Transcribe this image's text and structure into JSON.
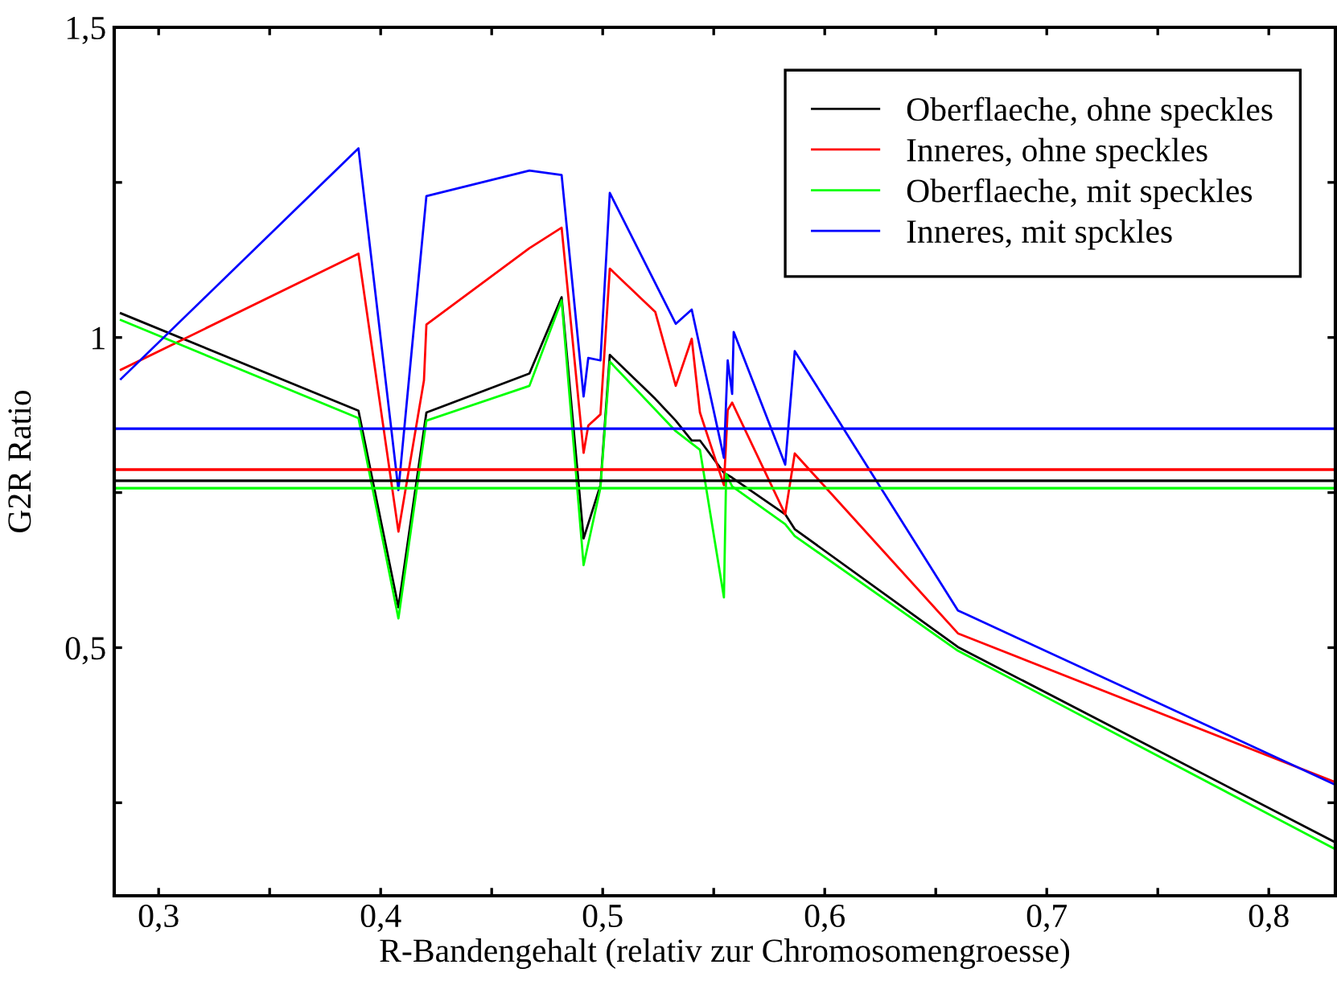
{
  "chart_data": {
    "type": "line",
    "xlabel": "R-Bandengehalt (relativ zur Chromosomengroesse)",
    "ylabel": "G2R Ratio",
    "xlim": [
      0.28,
      0.83
    ],
    "ylim": [
      0.1,
      1.5
    ],
    "xticks": [
      {
        "value": 0.3,
        "label": "0,3"
      },
      {
        "value": 0.35,
        "label": null
      },
      {
        "value": 0.4,
        "label": "0,4"
      },
      {
        "value": 0.45,
        "label": null
      },
      {
        "value": 0.5,
        "label": "0,5"
      },
      {
        "value": 0.55,
        "label": null
      },
      {
        "value": 0.6,
        "label": "0,6"
      },
      {
        "value": 0.65,
        "label": null
      },
      {
        "value": 0.7,
        "label": "0,7"
      },
      {
        "value": 0.75,
        "label": null
      },
      {
        "value": 0.8,
        "label": "0,8"
      }
    ],
    "yticks": [
      {
        "value": 0.25,
        "label": null
      },
      {
        "value": 0.5,
        "label": "0,5"
      },
      {
        "value": 0.75,
        "label": null
      },
      1,
      {
        "value": 1.25,
        "label": null
      },
      {
        "value": 1.5,
        "label": "1,5"
      }
    ],
    "grid": false,
    "legend": "top right",
    "marker": "none",
    "line_style": "solid",
    "series": [
      {
        "name": "Oberflaeche, ohne speckles",
        "color": "#000000",
        "x": [
          0.283,
          0.39,
          0.408,
          0.4206,
          0.467,
          0.4815,
          0.4914,
          0.499,
          0.5032,
          0.5237,
          0.5329,
          0.5401,
          0.5438,
          0.5546,
          0.5583,
          0.5822,
          0.5865,
          0.66,
          0.83
        ],
        "values": [
          1.039,
          0.882,
          0.565,
          0.879,
          0.942,
          1.065,
          0.676,
          0.762,
          0.972,
          0.901,
          0.866,
          0.834,
          0.834,
          0.782,
          0.774,
          0.715,
          0.691,
          0.501,
          0.186
        ]
      },
      {
        "name": "Inneres, ohne speckles",
        "color": "#ff0000",
        "x": [
          0.283,
          0.39,
          0.408,
          0.4195,
          0.4206,
          0.467,
          0.4815,
          0.4914,
          0.4935,
          0.499,
          0.5032,
          0.5237,
          0.5329,
          0.5401,
          0.5438,
          0.5546,
          0.5563,
          0.5583,
          0.5822,
          0.5865,
          0.66,
          0.83
        ],
        "values": [
          0.948,
          1.135,
          0.687,
          0.931,
          1.021,
          1.144,
          1.177,
          0.814,
          0.858,
          0.876,
          1.111,
          1.041,
          0.922,
          0.998,
          0.879,
          0.762,
          0.883,
          0.895,
          0.715,
          0.813,
          0.523,
          0.283
        ]
      },
      {
        "name": "Oberflaeche, mit speckles",
        "color": "#00ff00",
        "x": [
          0.283,
          0.39,
          0.408,
          0.4206,
          0.467,
          0.4815,
          0.4914,
          0.499,
          0.5032,
          0.5329,
          0.5438,
          0.5546,
          0.5556,
          0.5583,
          0.5822,
          0.5865,
          0.66,
          0.83
        ],
        "values": [
          1.028,
          0.87,
          0.547,
          0.866,
          0.922,
          1.06,
          0.633,
          0.758,
          0.961,
          0.849,
          0.819,
          0.581,
          0.78,
          0.76,
          0.699,
          0.68,
          0.495,
          0.175
        ]
      },
      {
        "name": "Inneres, mit spckles",
        "color": "#0000ff",
        "x": [
          0.283,
          0.39,
          0.408,
          0.4206,
          0.467,
          0.4815,
          0.4914,
          0.4935,
          0.499,
          0.5032,
          0.5329,
          0.5401,
          0.5546,
          0.5563,
          0.5583,
          0.559,
          0.5822,
          0.5865,
          0.66,
          0.83
        ],
        "values": [
          0.933,
          1.305,
          0.754,
          1.228,
          1.269,
          1.262,
          0.905,
          0.967,
          0.963,
          1.233,
          1.022,
          1.045,
          0.806,
          0.963,
          0.909,
          1.009,
          0.795,
          0.978,
          0.56,
          0.279
        ]
      }
    ],
    "ref_lines": [
      {
        "axis": "y",
        "value": 0.853,
        "color": "#0000ff"
      },
      {
        "axis": "y",
        "value": 0.787,
        "color": "#ff0000"
      },
      {
        "axis": "y",
        "value": 0.769,
        "color": "#000000"
      },
      {
        "axis": "y",
        "value": 0.757,
        "color": "#00ff00"
      }
    ]
  }
}
